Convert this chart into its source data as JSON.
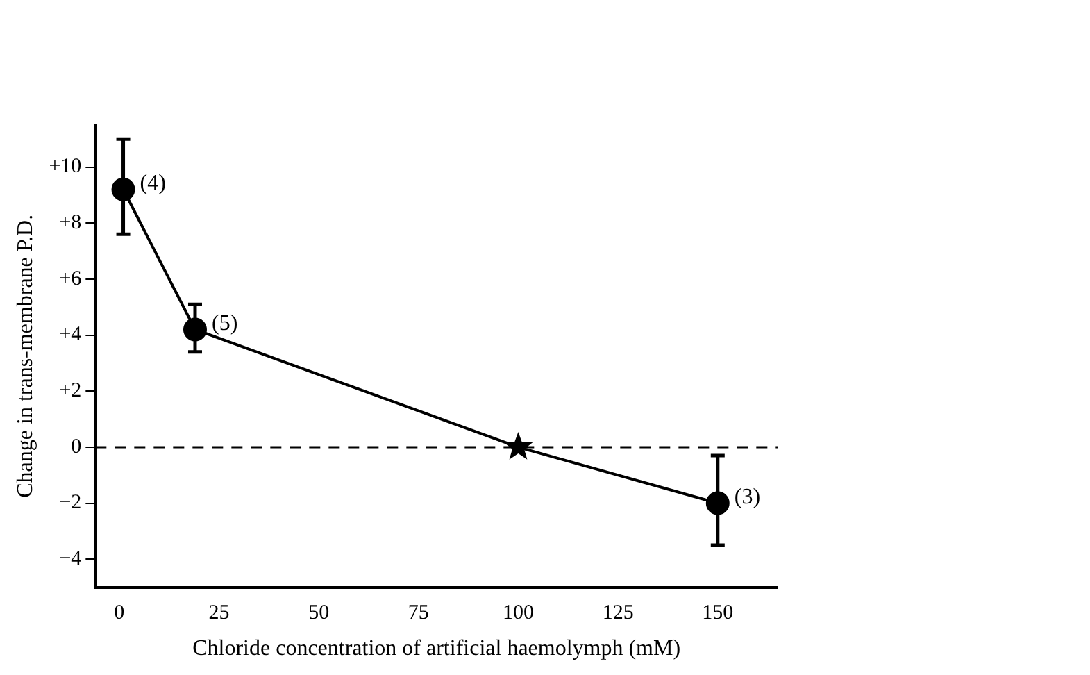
{
  "chart_data": {
    "type": "line",
    "xlabel": "Chloride concentration of artificial haemolymph (mM)",
    "ylabel": "Change in trans-membrane P.D.",
    "series": [
      {
        "x": [
          1,
          19,
          100,
          150
        ],
        "values": [
          9.2,
          4.2,
          0,
          -2
        ],
        "color": "#000000",
        "marker": "none"
      },
      {
        "type": "scatter",
        "x": [
          1,
          19,
          150
        ],
        "values": [
          9.2,
          4.2,
          -2
        ],
        "errors": [
          [
            7.6,
            11.0
          ],
          [
            3.4,
            5.1
          ],
          [
            -3.5,
            -0.3
          ]
        ],
        "color": "#000000",
        "marker": "circle"
      },
      {
        "type": "scatter",
        "x": [
          100
        ],
        "values": [
          0
        ],
        "color": "#000000",
        "marker": "star"
      }
    ],
    "annotations": [
      {
        "text": "(4)",
        "x": 1,
        "y": 9.2
      },
      {
        "text": "(5)",
        "x": 19,
        "y": 4.2
      },
      {
        "text": "(3)",
        "x": 150,
        "y": -2
      }
    ],
    "ref_lines": [
      {
        "axis": "y",
        "value": 0,
        "line_style": "dashed",
        "color": "#000000"
      }
    ],
    "xlim": [
      -6,
      165
    ],
    "xticks": [
      0,
      25,
      50,
      75,
      100,
      125,
      150
    ],
    "ylim": [
      -5,
      11.5
    ],
    "yticks": [
      {
        "value": -4,
        "label": "−4"
      },
      {
        "value": -2,
        "label": "−2"
      },
      0,
      {
        "value": 2,
        "label": "+2"
      },
      {
        "value": 4,
        "label": "+4"
      },
      {
        "value": 6,
        "label": "+6"
      },
      {
        "value": 8,
        "label": "+8"
      },
      {
        "value": 10,
        "label": "+10"
      }
    ],
    "grid": false,
    "legend": false
  }
}
